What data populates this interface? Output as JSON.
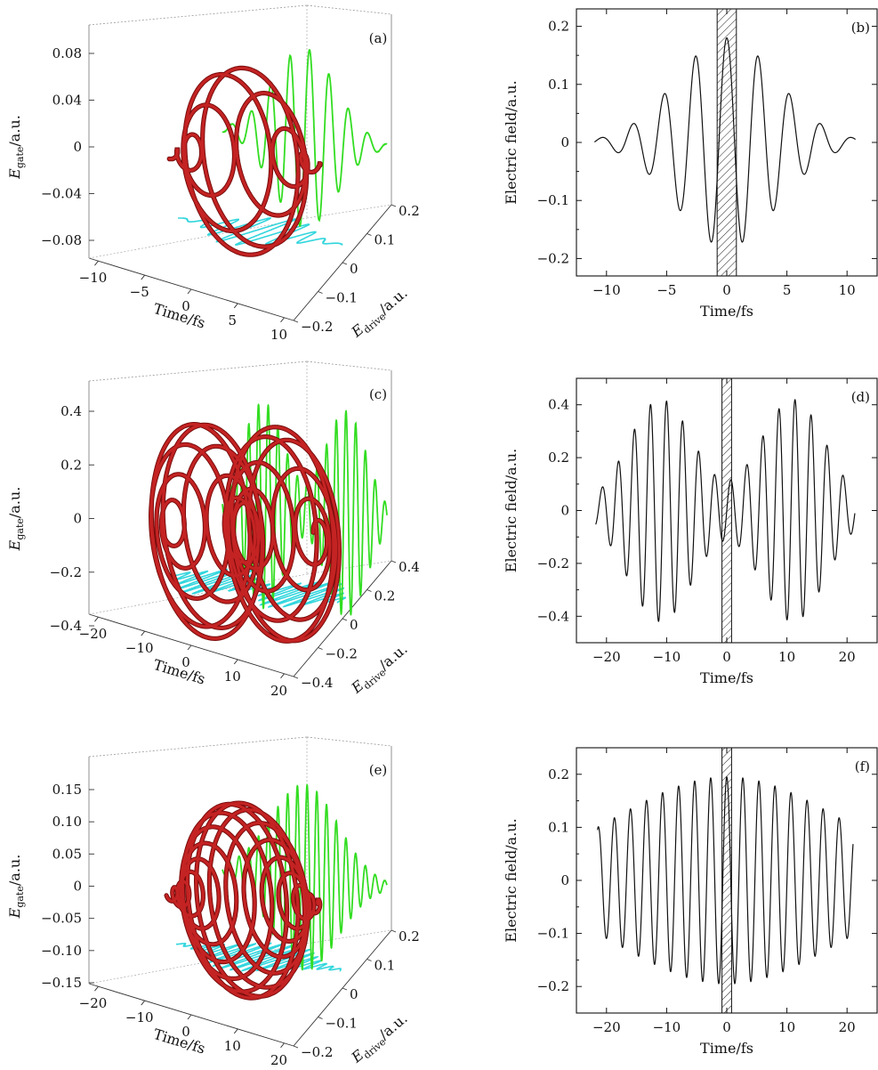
{
  "chart_data": [
    {
      "type": "line3d",
      "panel_label": "(a)",
      "xlabel": "Time/fs",
      "ylabel_main": "E",
      "ylabel_sub": "gate",
      "ylabel_unit": "/a.u.",
      "zlabel_main": "E",
      "zlabel_sub": "drive",
      "zlabel_unit": "/a.u.",
      "time_ticks": [
        -10,
        -5,
        0,
        5,
        10
      ],
      "time_tick_labels": [
        "−10",
        "−5",
        "0",
        "5",
        "10"
      ],
      "gate_ticks": [
        0.08,
        0.04,
        0,
        -0.04,
        -0.08
      ],
      "gate_tick_labels": [
        "0.08",
        "0.04",
        "0",
        "−0.04",
        "−0.08"
      ],
      "drive_ticks": [
        0.2,
        0.1,
        0,
        -0.1,
        -0.2
      ],
      "drive_tick_labels": [
        "0.2",
        "0.1",
        "0",
        "−0.1",
        "−0.2"
      ],
      "time_range": [
        -11,
        11
      ],
      "gate_amplitude": 0.09,
      "drive_amplitude": 0.18,
      "series": [
        {
          "role": "3d-trajectory",
          "color": "#b31b1b"
        },
        {
          "role": "gate-projection",
          "color": "#33dd22"
        },
        {
          "role": "drive-projection",
          "color": "#33d6dd"
        }
      ]
    },
    {
      "type": "line",
      "panel_label": "(b)",
      "xlabel": "Time/fs",
      "ylabel": "Electric field/a.u.",
      "xlim": [
        -12.5,
        12.5
      ],
      "ylim": [
        -0.23,
        0.23
      ],
      "xticks": [
        -10,
        -5,
        0,
        5,
        10
      ],
      "xtick_labels": [
        "−10",
        "−5",
        "0",
        "5",
        "10"
      ],
      "yticks": [
        -0.2,
        -0.1,
        0,
        0.1,
        0.2
      ],
      "ytick_labels": [
        "−0.2",
        "−0.1",
        "0",
        "0.1",
        "0.2"
      ],
      "gate_window": [
        -0.8,
        0.8
      ],
      "peak_amplitude": 0.18,
      "period_fs": 2.6,
      "duration_span": [
        -11,
        10.7
      ]
    },
    {
      "type": "line3d",
      "panel_label": "(c)",
      "xlabel": "Time/fs",
      "ylabel_main": "E",
      "ylabel_sub": "gate",
      "ylabel_unit": "/a.u.",
      "zlabel_main": "E",
      "zlabel_sub": "drive",
      "zlabel_unit": "/a.u.",
      "time_ticks": [
        -20,
        -10,
        0,
        10,
        20
      ],
      "time_tick_labels": [
        "−20",
        "−10",
        "0",
        "10",
        "20"
      ],
      "gate_ticks": [
        0.4,
        0.2,
        0,
        -0.2,
        -0.4
      ],
      "gate_tick_labels": [
        "0.4",
        "0.2",
        "0",
        "−0.2",
        "−0.4"
      ],
      "drive_ticks": [
        0.4,
        0.2,
        0,
        -0.2,
        -0.4
      ],
      "drive_tick_labels": [
        "0.4",
        "0.2",
        "0",
        "−0.2",
        "−0.4"
      ],
      "time_range": [
        -22,
        22
      ],
      "gate_amplitude": 0.42,
      "drive_amplitude": 0.42,
      "series": [
        {
          "role": "3d-trajectory",
          "color": "#b31b1b"
        },
        {
          "role": "gate-projection",
          "color": "#33dd22"
        },
        {
          "role": "drive-projection",
          "color": "#33d6dd"
        }
      ]
    },
    {
      "type": "line",
      "panel_label": "(d)",
      "xlabel": "Time/fs",
      "ylabel": "Electric field/a.u.",
      "xlim": [
        -25,
        25
      ],
      "ylim": [
        -0.5,
        0.5
      ],
      "xticks": [
        -20,
        -10,
        0,
        10,
        20
      ],
      "xtick_labels": [
        "−20",
        "−10",
        "0",
        "10",
        "20"
      ],
      "yticks": [
        -0.4,
        -0.2,
        0,
        0.2,
        0.4
      ],
      "ytick_labels": [
        "−0.4",
        "−0.2",
        "0",
        "0.2",
        "0.4"
      ],
      "gate_window": [
        -0.8,
        0.8
      ],
      "peak_amplitude": 0.42,
      "period_fs": 2.67,
      "duration_span": [
        -21.8,
        21.3
      ]
    },
    {
      "type": "line3d",
      "panel_label": "(e)",
      "xlabel": "Time/fs",
      "ylabel_main": "E",
      "ylabel_sub": "gate",
      "ylabel_unit": "/a.u.",
      "zlabel_main": "E",
      "zlabel_sub": "drive",
      "zlabel_unit": "/a.u.",
      "time_ticks": [
        -20,
        -10,
        0,
        10,
        20
      ],
      "time_tick_labels": [
        "−20",
        "−10",
        "0",
        "10",
        "20"
      ],
      "gate_ticks": [
        0.15,
        0.1,
        0.05,
        0,
        -0.05,
        -0.1,
        -0.15
      ],
      "gate_tick_labels": [
        "0.15",
        "0.10",
        "0.05",
        "0",
        "−0.05",
        "−0.10",
        "−0.15"
      ],
      "drive_ticks": [
        0.2,
        0.1,
        0,
        -0.1,
        -0.2
      ],
      "drive_tick_labels": [
        "0.2",
        "0.1",
        "0",
        "−0.1",
        "−0.2"
      ],
      "time_range": [
        -22,
        22
      ],
      "gate_amplitude": 0.16,
      "drive_amplitude": 0.19,
      "series": [
        {
          "role": "3d-trajectory",
          "color": "#b31b1b"
        },
        {
          "role": "gate-projection",
          "color": "#33dd22"
        },
        {
          "role": "drive-projection",
          "color": "#33d6dd"
        }
      ]
    },
    {
      "type": "line",
      "panel_label": "(f)",
      "xlabel": "Time/fs",
      "ylabel": "Electric field/a.u.",
      "xlim": [
        -25,
        25
      ],
      "ylim": [
        -0.25,
        0.25
      ],
      "xticks": [
        -20,
        -10,
        0,
        10,
        20
      ],
      "xtick_labels": [
        "−20",
        "−10",
        "0",
        "10",
        "20"
      ],
      "yticks": [
        -0.2,
        -0.1,
        0,
        0.1,
        0.2
      ],
      "ytick_labels": [
        "−0.2",
        "−0.1",
        "0",
        "0.1",
        "0.2"
      ],
      "gate_window": [
        -0.8,
        0.8
      ],
      "peak_amplitude": 0.195,
      "period_fs": 2.67,
      "duration_span": [
        -21.5,
        21
      ]
    }
  ]
}
